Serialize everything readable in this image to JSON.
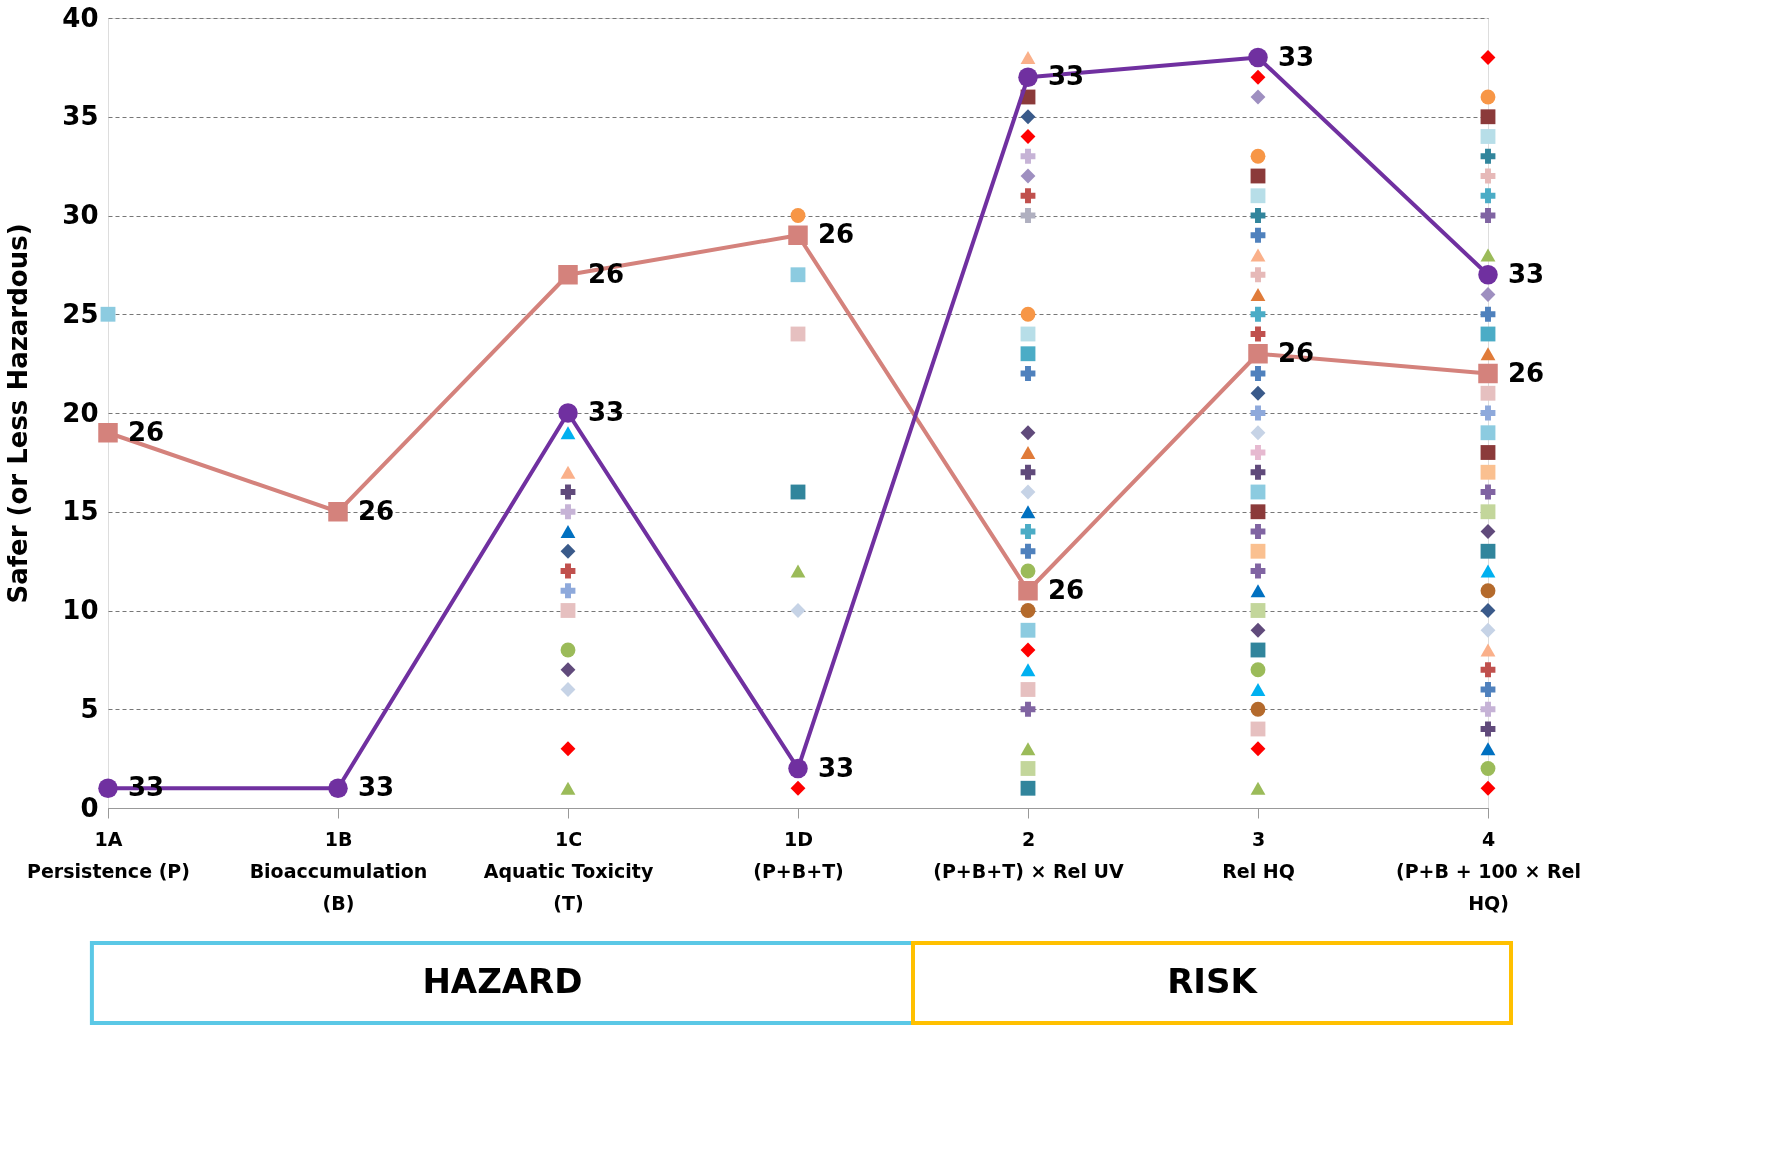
{
  "chart_data": {
    "type": "scatter",
    "ylabel": "Safer (or Less Hazardous)",
    "categories": [
      "1A\nPersistence (P)",
      "1B\nBioaccumulation\n(B)",
      "1C\nAquatic Toxicity\n(T)",
      "1D\n(P+B+T)",
      "2\n(P+B+T) × Rel UV",
      "3\nRel HQ",
      "4\n(P+B + 100 × Rel\nHQ)"
    ],
    "ylim": [
      0,
      40
    ],
    "yticks": [
      0,
      5,
      10,
      15,
      20,
      25,
      30,
      35,
      40
    ],
    "grid": "y",
    "annotations": [
      "HAZARD",
      "RISK"
    ],
    "series": [
      {
        "marker": "diamond",
        "x": [
          "1C\nAquatic Toxicity\n(T)",
          "1C\nAquatic Toxicity\n(T)",
          "1C\nAquatic Toxicity\n(T)",
          "1C\nAquatic Toxicity\n(T)",
          "1D\n(P+B+T)",
          "1D\n(P+B+T)",
          "2\n(P+B+T) × Rel UV",
          "2\n(P+B+T) × Rel UV",
          "2\n(P+B+T) × Rel UV",
          "2\n(P+B+T) × Rel UV",
          "2\n(P+B+T) × Rel UV",
          "2\n(P+B+T) × Rel UV",
          "3\nRel HQ",
          "3\nRel HQ",
          "3\nRel HQ",
          "3\nRel HQ",
          "3\nRel HQ",
          "3\nRel HQ",
          "4\n(P+B + 100 × Rel\nHQ)",
          "4\n(P+B + 100 × Rel\nHQ)",
          "4\n(P+B + 100 × Rel\nHQ)",
          "4\n(P+B + 100 × Rel\nHQ)",
          "4\n(P+B + 100 × Rel\nHQ)",
          "4\n(P+B + 100 × Rel\nHQ)"
        ],
        "values": [
          13,
          7,
          6,
          3,
          10,
          1,
          35,
          34,
          32,
          19,
          16,
          8,
          37,
          36,
          21,
          19,
          9,
          3,
          38,
          26,
          14,
          10,
          9,
          1
        ],
        "colors": [
          "#3a5a8a",
          "#604a7b",
          "#c6d3e6",
          "#ff0000",
          "#c6d3e6",
          "#ff0000",
          "#3a5a8a",
          "#ff0000",
          "#9e8fc0",
          "#604a7b",
          "#c6d3e6",
          "#ff0000",
          "#ff0000",
          "#9e8fc0",
          "#3a5a8a",
          "#c6d3e6",
          "#604a7b",
          "#ff0000",
          "#ff0000",
          "#9e8fc0",
          "#604a7b",
          "#3a5a8a",
          "#c6d3e6",
          "#ff0000"
        ]
      },
      {
        "marker": "square",
        "x": [
          "1A\nPersistence (P)",
          "1C\nAquatic Toxicity\n(T)",
          "1D\n(P+B+T)",
          "1D\n(P+B+T)",
          "1D\n(P+B+T)",
          "2\n(P+B+T) × Rel UV",
          "2\n(P+B+T) × Rel UV",
          "2\n(P+B+T) × Rel UV",
          "2\n(P+B+T) × Rel UV",
          "2\n(P+B+T) × Rel UV",
          "2\n(P+B+T) × Rel UV",
          "2\n(P+B+T) × Rel UV",
          "3\nRel HQ",
          "3\nRel HQ",
          "3\nRel HQ",
          "3\nRel HQ",
          "3\nRel HQ",
          "3\nRel HQ",
          "3\nRel HQ",
          "3\nRel HQ",
          "4\n(P+B + 100 × Rel\nHQ)",
          "4\n(P+B + 100 × Rel\nHQ)",
          "4\n(P+B + 100 × Rel\nHQ)",
          "4\n(P+B + 100 × Rel\nHQ)",
          "4\n(P+B + 100 × Rel\nHQ)",
          "4\n(P+B + 100 × Rel\nHQ)",
          "4\n(P+B + 100 × Rel\nHQ)",
          "4\n(P+B + 100 × Rel\nHQ)",
          "4\n(P+B + 100 × Rel\nHQ)"
        ],
        "values": [
          25,
          10,
          27,
          24,
          16,
          36,
          24,
          23,
          9,
          6,
          2,
          1,
          32,
          31,
          16,
          15,
          13,
          10,
          8,
          4,
          35,
          34,
          24,
          21,
          19,
          18,
          17,
          15,
          13
        ],
        "colors": [
          "#8ccbe0",
          "#e6c0c0",
          "#8ccbe0",
          "#e6c0c0",
          "#31859c",
          "#8b3a3a",
          "#b7dee8",
          "#4bacc6",
          "#8ccbe0",
          "#e6c0c0",
          "#c3d69b",
          "#31859c",
          "#8b3a3a",
          "#b7dee8",
          "#8ccbe0",
          "#8b3a3a",
          "#fac090",
          "#c3d69b",
          "#31859c",
          "#e6c0c0",
          "#8b3a3a",
          "#b7dee8",
          "#4bacc6",
          "#e6c0c0",
          "#8ccbe0",
          "#8b3a3a",
          "#fac090",
          "#c3d69b",
          "#31859c"
        ]
      },
      {
        "marker": "triangle",
        "x": [
          "1C\nAquatic Toxicity\n(T)",
          "1C\nAquatic Toxicity\n(T)",
          "1C\nAquatic Toxicity\n(T)",
          "1C\nAquatic Toxicity\n(T)",
          "1D\n(P+B+T)",
          "2\n(P+B+T) × Rel UV",
          "2\n(P+B+T) × Rel UV",
          "2\n(P+B+T) × Rel UV",
          "2\n(P+B+T) × Rel UV",
          "2\n(P+B+T) × Rel UV",
          "3\nRel HQ",
          "3\nRel HQ",
          "3\nRel HQ",
          "3\nRel HQ",
          "3\nRel HQ",
          "4\n(P+B + 100 × Rel\nHQ)",
          "4\n(P+B + 100 × Rel\nHQ)",
          "4\n(P+B + 100 × Rel\nHQ)",
          "4\n(P+B + 100 × Rel\nHQ)",
          "4\n(P+B + 100 × Rel\nHQ)"
        ],
        "values": [
          19,
          17,
          14,
          1,
          12,
          38,
          18,
          15,
          7,
          3,
          28,
          26,
          11,
          6,
          1,
          28,
          23,
          12,
          8,
          3
        ],
        "colors": [
          "#00b0f0",
          "#fab08a",
          "#0070c0",
          "#9bbb59",
          "#9bbb59",
          "#fab08a",
          "#e07b39",
          "#0070c0",
          "#00b0f0",
          "#9bbb59",
          "#fab08a",
          "#e07b39",
          "#0070c0",
          "#00b0f0",
          "#9bbb59",
          "#9bbb59",
          "#e07b39",
          "#00b0f0",
          "#fab08a",
          "#0070c0"
        ]
      },
      {
        "marker": "circle",
        "x": [
          "1C\nAquatic Toxicity\n(T)",
          "1D\n(P+B+T)",
          "2\n(P+B+T) × Rel UV",
          "2\n(P+B+T) × Rel UV",
          "2\n(P+B+T) × Rel UV",
          "3\nRel HQ",
          "3\nRel HQ",
          "3\nRel HQ",
          "4\n(P+B + 100 × Rel\nHQ)",
          "4\n(P+B + 100 × Rel\nHQ)",
          "4\n(P+B + 100 × Rel\nHQ)"
        ],
        "values": [
          8,
          30,
          25,
          12,
          10,
          33,
          7,
          5,
          36,
          11,
          2
        ],
        "colors": [
          "#9bbb59",
          "#f79646",
          "#f79646",
          "#9bbb59",
          "#b46a2c",
          "#f79646",
          "#9bbb59",
          "#b46a2c",
          "#f79646",
          "#b46a2c",
          "#9bbb59"
        ]
      },
      {
        "marker": "cross",
        "x": [
          "1C\nAquatic Toxicity\n(T)",
          "1C\nAquatic Toxicity\n(T)",
          "1C\nAquatic Toxicity\n(T)",
          "1C\nAquatic Toxicity\n(T)",
          "2\n(P+B+T) × Rel UV",
          "2\n(P+B+T) × Rel UV",
          "2\n(P+B+T) × Rel UV",
          "2\n(P+B+T) × Rel UV",
          "2\n(P+B+T) × Rel UV",
          "2\n(P+B+T) × Rel UV",
          "2\n(P+B+T) × Rel UV",
          "2\n(P+B+T) × Rel UV",
          "3\nRel HQ",
          "3\nRel HQ",
          "3\nRel HQ",
          "3\nRel HQ",
          "3\nRel HQ",
          "3\nRel HQ",
          "3\nRel HQ",
          "3\nRel HQ",
          "3\nRel HQ",
          "3\nRel HQ",
          "3\nRel HQ",
          "4\n(P+B + 100 × Rel\nHQ)",
          "4\n(P+B + 100 × Rel\nHQ)",
          "4\n(P+B + 100 × Rel\nHQ)",
          "4\n(P+B + 100 × Rel\nHQ)",
          "4\n(P+B + 100 × Rel\nHQ)",
          "4\n(P+B + 100 × Rel\nHQ)",
          "4\n(P+B + 100 × Rel\nHQ)",
          "4\n(P+B + 100 × Rel\nHQ)",
          "4\n(P+B + 100 × Rel\nHQ)",
          "4\n(P+B + 100 × Rel\nHQ)",
          "4\n(P+B + 100 × Rel\nHQ)"
        ],
        "values": [
          16,
          15,
          12,
          11,
          33,
          31,
          30,
          22,
          17,
          14,
          13,
          5,
          30,
          29,
          27,
          25,
          24,
          22,
          20,
          18,
          17,
          14,
          12,
          33,
          32,
          31,
          30,
          25,
          20,
          16,
          7,
          6,
          5,
          4
        ],
        "colors": [
          "#604a7b",
          "#c6b3d6",
          "#c0504d",
          "#8ea9db",
          "#c6b3d6",
          "#c0504d",
          "#b0b0c0",
          "#4f81bd",
          "#604a7b",
          "#4bacc6",
          "#4f81bd",
          "#8064a2",
          "#31859c",
          "#4f81bd",
          "#e6b9b8",
          "#4bacc6",
          "#c0504d",
          "#4f81bd",
          "#8ea9db",
          "#e6b9d0",
          "#604a7b",
          "#8064a2",
          "#8064a2",
          "#31859c",
          "#e6b9b8",
          "#4bacc6",
          "#8064a2",
          "#4f81bd",
          "#8ea9db",
          "#8064a2",
          "#c0504d",
          "#4f81bd",
          "#c6b3d6",
          "#604a7b"
        ]
      },
      {
        "type": "line",
        "name": "26",
        "marker": "square",
        "color": "#d4827c",
        "values": [
          19,
          15,
          27,
          29,
          11,
          23,
          22
        ]
      },
      {
        "type": "line",
        "name": "33",
        "marker": "circle",
        "color": "#7030a0",
        "values": [
          1,
          1,
          20,
          2,
          37,
          38,
          27
        ]
      }
    ]
  }
}
